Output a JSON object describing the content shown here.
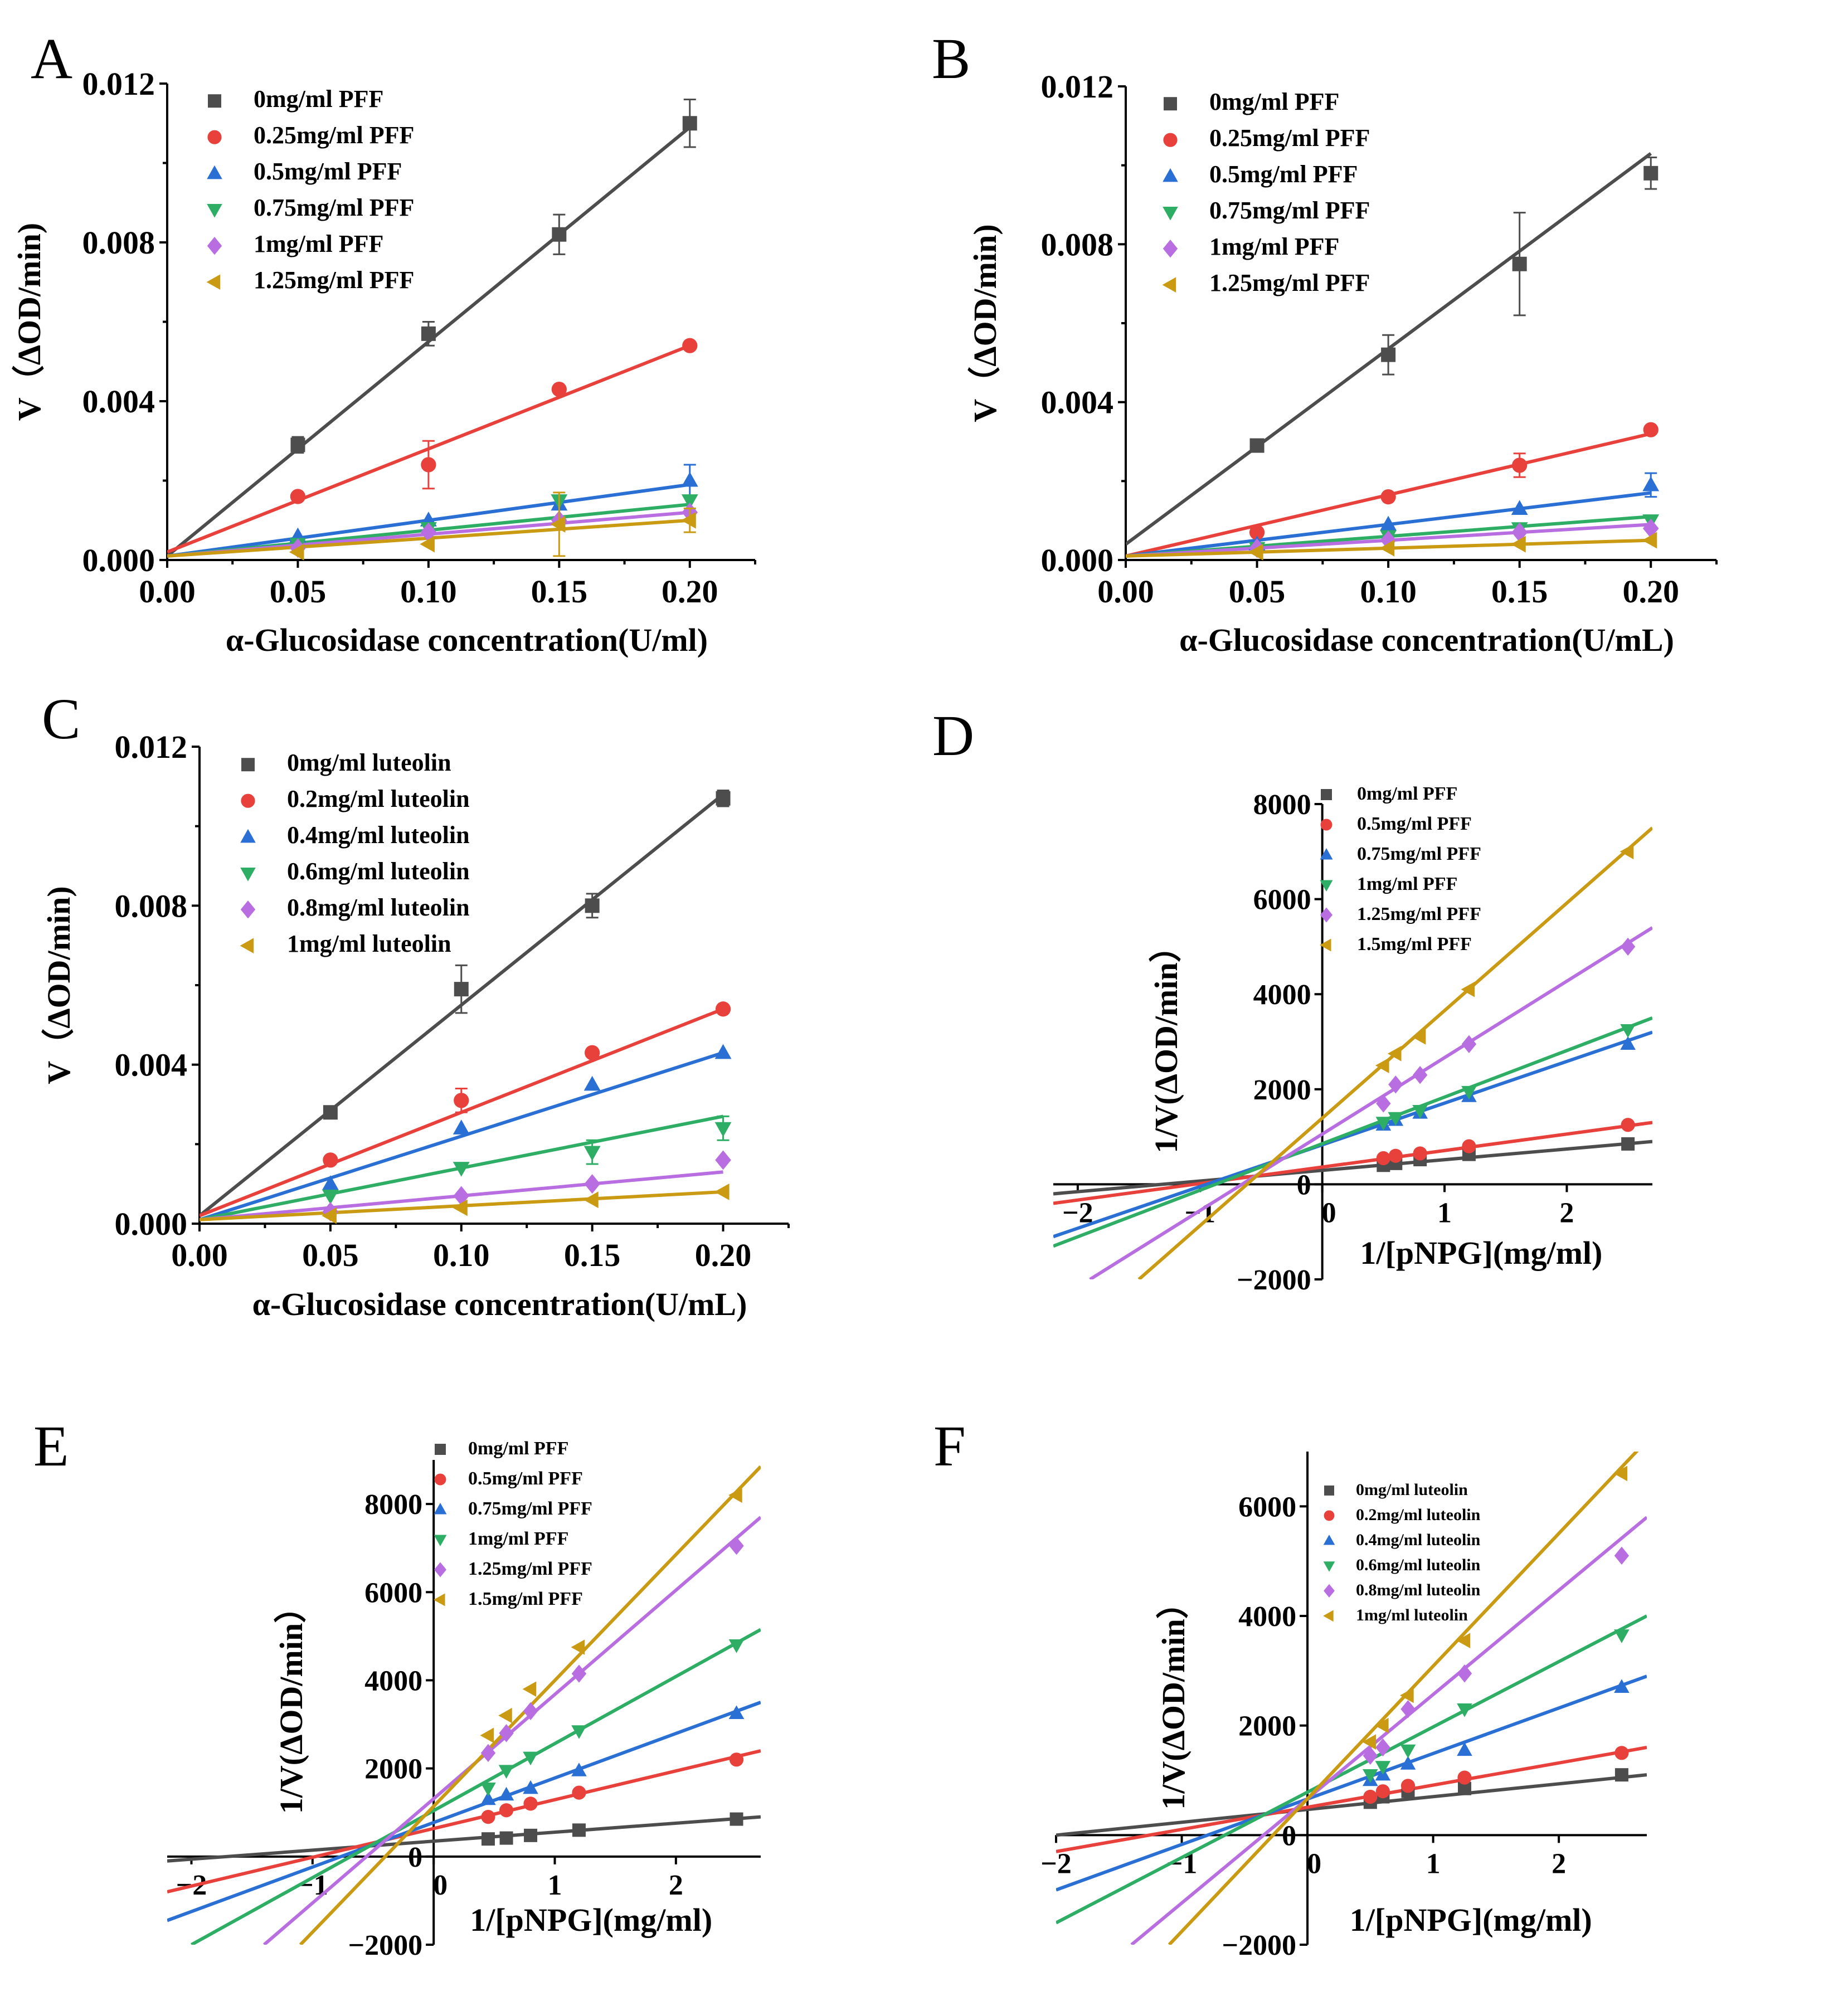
{
  "chart_data": [
    {
      "id": "A",
      "type": "scatter",
      "panel_label": "A",
      "xlabel": "α-Glucosidase concentration(U/ml)",
      "ylabel": "V（ΔOD/min)",
      "xlim": [
        0,
        0.225
      ],
      "ylim": [
        0,
        0.012
      ],
      "xticks": [
        0.0,
        0.05,
        0.1,
        0.15,
        0.2
      ],
      "xtick_labels": [
        "0.00",
        "0.05",
        "0.10",
        "0.15",
        "0.20"
      ],
      "yticks": [
        0,
        0.004,
        0.008,
        0.012
      ],
      "ytick_labels": [
        "0.000",
        "0.004",
        "0.008",
        "0.012"
      ],
      "x": [
        0.05,
        0.1,
        0.15,
        0.2
      ],
      "series": [
        {
          "name": "0mg/ml PFF",
          "color": "#4d4d4d",
          "marker": "square",
          "values": [
            0.0029,
            0.0057,
            0.0082,
            0.011
          ],
          "errors": [
            0.0002,
            0.0003,
            0.0005,
            0.0006
          ],
          "fit": [
            0.0001,
            0.0109
          ]
        },
        {
          "name": "0.25mg/ml PFF",
          "color": "#e8413c",
          "marker": "circle",
          "values": [
            0.0016,
            0.0024,
            0.0043,
            0.0054
          ],
          "errors": [
            0,
            0.0006,
            0,
            0
          ],
          "fit": [
            0.0002,
            0.0054
          ]
        },
        {
          "name": "0.5mg/ml PFF",
          "color": "#2a6fd4",
          "marker": "triangle-up",
          "values": [
            0.0006,
            0.001,
            0.0014,
            0.002
          ],
          "errors": [
            0,
            0,
            0,
            0.0004
          ],
          "fit": [
            0.0001,
            0.0019
          ]
        },
        {
          "name": "0.75mg/ml PFF",
          "color": "#2eae65",
          "marker": "triangle-down",
          "values": [
            0.0004,
            0.0008,
            0.0015,
            0.0015
          ],
          "errors": [
            0,
            0,
            0,
            0
          ],
          "fit": [
            0.0001,
            0.0014
          ]
        },
        {
          "name": "1mg/ml PFF",
          "color": "#b86ee0",
          "marker": "diamond",
          "values": [
            0.0003,
            0.0007,
            0.001,
            0.0012
          ],
          "errors": [
            0,
            0,
            0,
            0
          ],
          "fit": [
            0.0001,
            0.0012
          ]
        },
        {
          "name": "1.25mg/ml PFF",
          "color": "#c99a12",
          "marker": "triangle-left",
          "values": [
            0.0002,
            0.0004,
            0.0009,
            0.001
          ],
          "errors": [
            0,
            0,
            0.0008,
            0.0003
          ],
          "fit": [
            0.0001,
            0.001
          ]
        }
      ]
    },
    {
      "id": "B",
      "type": "scatter",
      "panel_label": "B",
      "xlabel": "α-Glucosidase concentration(U/mL)",
      "ylabel": "V（ΔOD/min)",
      "xlim": [
        0,
        0.225
      ],
      "ylim": [
        0,
        0.012
      ],
      "xticks": [
        0.0,
        0.05,
        0.1,
        0.15,
        0.2
      ],
      "xtick_labels": [
        "0.00",
        "0.05",
        "0.10",
        "0.15",
        "0.20"
      ],
      "yticks": [
        0,
        0.004,
        0.008,
        0.012
      ],
      "ytick_labels": [
        "0.000",
        "0.004",
        "0.008",
        "0.012"
      ],
      "x": [
        0.05,
        0.1,
        0.15,
        0.2
      ],
      "series": [
        {
          "name": "0mg/ml PFF",
          "color": "#4d4d4d",
          "marker": "square",
          "values": [
            0.0029,
            0.0052,
            0.0075,
            0.0098
          ],
          "errors": [
            0,
            0.0005,
            0.0013,
            0.0004
          ],
          "fit": [
            0.0004,
            0.0103
          ]
        },
        {
          "name": "0.25mg/ml PFF",
          "color": "#e8413c",
          "marker": "circle",
          "values": [
            0.0007,
            0.0016,
            0.0024,
            0.0033
          ],
          "errors": [
            0,
            0,
            0.0003,
            0
          ],
          "fit": [
            0.0001,
            0.0032
          ]
        },
        {
          "name": "0.5mg/ml PFF",
          "color": "#2a6fd4",
          "marker": "triangle-up",
          "values": [
            0.0004,
            0.0009,
            0.0013,
            0.0019
          ],
          "errors": [
            0,
            0,
            0,
            0.0003
          ],
          "fit": [
            0.0001,
            0.0017
          ]
        },
        {
          "name": "0.75mg/ml PFF",
          "color": "#2eae65",
          "marker": "triangle-down",
          "values": [
            0.0003,
            0.0006,
            0.0008,
            0.001
          ],
          "errors": [
            0,
            0,
            0,
            0
          ],
          "fit": [
            0.0001,
            0.0011
          ]
        },
        {
          "name": "1mg/ml PFF",
          "color": "#b86ee0",
          "marker": "diamond",
          "values": [
            0.0003,
            0.0005,
            0.0007,
            0.0008
          ],
          "errors": [
            0,
            0,
            0,
            0
          ],
          "fit": [
            0.0001,
            0.0009
          ]
        },
        {
          "name": "1.25mg/ml PFF",
          "color": "#c99a12",
          "marker": "triangle-left",
          "values": [
            0.0002,
            0.0003,
            0.0004,
            0.0005
          ],
          "errors": [
            0,
            0,
            0,
            0
          ],
          "fit": [
            0.0001,
            0.0005
          ]
        }
      ]
    },
    {
      "id": "C",
      "type": "scatter",
      "panel_label": "C",
      "xlabel": "α-Glucosidase concentration(U/mL)",
      "ylabel": "V（ΔOD/min)",
      "xlim": [
        0,
        0.225
      ],
      "ylim": [
        0,
        0.012
      ],
      "xticks": [
        0.0,
        0.05,
        0.1,
        0.15,
        0.2
      ],
      "xtick_labels": [
        "0.00",
        "0.05",
        "0.10",
        "0.15",
        "0.20"
      ],
      "yticks": [
        0,
        0.004,
        0.008,
        0.012
      ],
      "ytick_labels": [
        "0.000",
        "0.004",
        "0.008",
        "0.012"
      ],
      "x": [
        0.05,
        0.1,
        0.15,
        0.2
      ],
      "series": [
        {
          "name": "0mg/ml luteolin",
          "color": "#4d4d4d",
          "marker": "square",
          "values": [
            0.0028,
            0.0059,
            0.008,
            0.0107
          ],
          "errors": [
            0,
            0.0006,
            0.0003,
            0.0002
          ],
          "fit": [
            0.0002,
            0.0108
          ]
        },
        {
          "name": "0.2mg/ml luteolin",
          "color": "#e8413c",
          "marker": "circle",
          "values": [
            0.0016,
            0.0031,
            0.0043,
            0.0054
          ],
          "errors": [
            0,
            0.0003,
            0,
            0
          ],
          "fit": [
            0.0002,
            0.0054
          ]
        },
        {
          "name": "0.4mg/ml luteolin",
          "color": "#2a6fd4",
          "marker": "triangle-up",
          "values": [
            0.001,
            0.0024,
            0.0035,
            0.0043
          ],
          "errors": [
            0,
            0,
            0,
            0
          ],
          "fit": [
            0.0001,
            0.0043
          ]
        },
        {
          "name": "0.6mg/ml luteolin",
          "color": "#2eae65",
          "marker": "triangle-down",
          "values": [
            0.0007,
            0.0014,
            0.0018,
            0.0024
          ],
          "errors": [
            0,
            0,
            0.0003,
            0.0003
          ],
          "fit": [
            0.0001,
            0.0027
          ]
        },
        {
          "name": "0.8mg/ml luteolin",
          "color": "#b86ee0",
          "marker": "diamond",
          "values": [
            0.0003,
            0.0007,
            0.001,
            0.0016
          ],
          "errors": [
            0,
            0,
            0,
            0
          ],
          "fit": [
            0.0001,
            0.0013
          ]
        },
        {
          "name": "1mg/ml luteolin",
          "color": "#c99a12",
          "marker": "triangle-left",
          "values": [
            0.0002,
            0.0004,
            0.0006,
            0.0008
          ],
          "errors": [
            0,
            0,
            0,
            0
          ],
          "fit": [
            0.0001,
            0.0008
          ]
        }
      ]
    },
    {
      "id": "D",
      "type": "scatter",
      "panel_label": "D",
      "xlabel": "1/[pNPG](mg/ml)",
      "ylabel": "1/V(ΔOD/min）",
      "xlim": [
        -2.2,
        2.7
      ],
      "ylim": [
        -2000,
        8000
      ],
      "xticks": [
        -2,
        -1,
        0,
        1,
        2
      ],
      "xtick_labels": [
        "−2",
        "−1",
        "0",
        "1",
        "2"
      ],
      "yticks": [
        -2000,
        0,
        2000,
        4000,
        6000,
        8000
      ],
      "ytick_labels": [
        "−2000",
        "0",
        "2000",
        "4000",
        "6000",
        "8000"
      ],
      "x": [
        0.5,
        0.6,
        0.8,
        1.2,
        2.5
      ],
      "series": [
        {
          "name": "0mg/ml PFF",
          "color": "#4d4d4d",
          "marker": "square",
          "values": [
            400,
            440,
            520,
            630,
            850
          ],
          "fit": [
            -2.2,
            -200,
            2.7,
            900
          ]
        },
        {
          "name": "0.5mg/ml PFF",
          "color": "#e8413c",
          "marker": "circle",
          "values": [
            550,
            600,
            650,
            800,
            1250
          ],
          "fit": [
            -2.2,
            -400,
            2.7,
            1300
          ]
        },
        {
          "name": "0.75mg/ml PFF",
          "color": "#2a6fd4",
          "marker": "triangle-up",
          "values": [
            1250,
            1350,
            1500,
            1850,
            2950
          ],
          "fit": [
            -2.2,
            -1100,
            2.7,
            3200
          ]
        },
        {
          "name": "1mg/ml PFF",
          "color": "#2eae65",
          "marker": "triangle-down",
          "values": [
            1300,
            1400,
            1550,
            1950,
            3250
          ],
          "fit": [
            -2.2,
            -1300,
            2.7,
            3500
          ]
        },
        {
          "name": "1.25mg/ml PFF",
          "color": "#b86ee0",
          "marker": "diamond",
          "values": [
            1700,
            2100,
            2300,
            2950,
            5000
          ],
          "fit": [
            -1.9,
            -2000,
            2.7,
            5400
          ]
        },
        {
          "name": "1.5mg/ml PFF",
          "color": "#c99a12",
          "marker": "triangle-left",
          "values": [
            2500,
            2750,
            3100,
            4100,
            7000
          ],
          "fit": [
            -1.5,
            -2000,
            2.7,
            7500
          ]
        }
      ]
    },
    {
      "id": "E",
      "type": "scatter",
      "panel_label": "E",
      "xlabel": "1/[pNPG](mg/ml)",
      "ylabel": "1/V(ΔOD/min）",
      "xlim": [
        -2.2,
        2.7
      ],
      "ylim": [
        -2000,
        9000
      ],
      "xticks": [
        -2,
        -1,
        0,
        1,
        2
      ],
      "xtick_labels": [
        "−2",
        "−1",
        "0",
        "1",
        "2"
      ],
      "yticks": [
        -2000,
        0,
        2000,
        4000,
        6000,
        8000
      ],
      "ytick_labels": [
        "−2000",
        "0",
        "2000",
        "4000",
        "6000",
        "8000"
      ],
      "x": [
        0.45,
        0.6,
        0.8,
        1.2,
        2.5
      ],
      "series": [
        {
          "name": "0mg/ml PFF",
          "color": "#4d4d4d",
          "marker": "square",
          "values": [
            400,
            420,
            480,
            600,
            850
          ],
          "fit": [
            -2.2,
            -100,
            2.7,
            900
          ]
        },
        {
          "name": "0.5mg/ml PFF",
          "color": "#e8413c",
          "marker": "circle",
          "values": [
            900,
            1050,
            1200,
            1450,
            2200
          ],
          "fit": [
            -2.2,
            -800,
            2.7,
            2400
          ]
        },
        {
          "name": "0.75mg/ml PFF",
          "color": "#2a6fd4",
          "marker": "triangle-up",
          "values": [
            1300,
            1400,
            1550,
            1950,
            3250
          ],
          "fit": [
            -2.2,
            -1450,
            2.7,
            3500
          ]
        },
        {
          "name": "1mg/ml PFF",
          "color": "#2eae65",
          "marker": "triangle-down",
          "values": [
            1550,
            1950,
            2250,
            2850,
            4800
          ],
          "fit": [
            -2.0,
            -2000,
            2.7,
            5150
          ]
        },
        {
          "name": "1.25mg/ml PFF",
          "color": "#b86ee0",
          "marker": "diamond",
          "values": [
            2350,
            2800,
            3300,
            4150,
            7050
          ],
          "fit": [
            -1.4,
            -2000,
            2.7,
            7700
          ]
        },
        {
          "name": "1.5mg/ml PFF",
          "color": "#c99a12",
          "marker": "triangle-left",
          "values": [
            2750,
            3200,
            3800,
            4750,
            8200
          ],
          "fit": [
            -1.1,
            -2000,
            2.7,
            8850
          ]
        }
      ]
    },
    {
      "id": "F",
      "type": "scatter",
      "panel_label": "F",
      "xlabel": "1/[pNPG](mg/ml)",
      "ylabel": "1/V(ΔOD/min）",
      "xlim": [
        -2.0,
        2.7
      ],
      "ylim": [
        -2000,
        7000
      ],
      "xticks": [
        -2,
        -1,
        0,
        1,
        2
      ],
      "xtick_labels": [
        "−2",
        "−1",
        "0",
        "1",
        "2"
      ],
      "yticks": [
        -2000,
        0,
        2000,
        4000,
        6000
      ],
      "ytick_labels": [
        "−2000",
        "0",
        "2000",
        "4000",
        "6000"
      ],
      "x": [
        0.5,
        0.6,
        0.8,
        1.25,
        2.5
      ],
      "series": [
        {
          "name": "0mg/ml luteolin",
          "color": "#4d4d4d",
          "marker": "square",
          "values": [
            600,
            700,
            800,
            850,
            1100
          ],
          "fit": [
            -2.0,
            0,
            2.7,
            1100
          ]
        },
        {
          "name": "0.2mg/ml luteolin",
          "color": "#e8413c",
          "marker": "circle",
          "values": [
            700,
            800,
            900,
            1050,
            1500
          ],
          "fit": [
            -2.0,
            -300,
            2.7,
            1600
          ]
        },
        {
          "name": "0.4mg/ml luteolin",
          "color": "#2a6fd4",
          "marker": "triangle-up",
          "values": [
            1000,
            1100,
            1300,
            1550,
            2700
          ],
          "fit": [
            -2.0,
            -1000,
            2.7,
            2900
          ]
        },
        {
          "name": "0.6mg/ml luteolin",
          "color": "#2eae65",
          "marker": "triangle-down",
          "values": [
            1100,
            1250,
            1550,
            2300,
            3650
          ],
          "fit": [
            -2.0,
            -1600,
            2.7,
            4000
          ]
        },
        {
          "name": "0.8mg/ml luteolin",
          "color": "#b86ee0",
          "marker": "diamond",
          "values": [
            1450,
            1600,
            2300,
            2950,
            5100
          ],
          "fit": [
            -1.4,
            -2000,
            2.7,
            5800
          ]
        },
        {
          "name": "1mg/ml luteolin",
          "color": "#c99a12",
          "marker": "triangle-left",
          "values": [
            1700,
            2000,
            2550,
            3550,
            6600
          ],
          "fit": [
            -1.1,
            -2000,
            2.7,
            7200
          ]
        }
      ]
    }
  ]
}
